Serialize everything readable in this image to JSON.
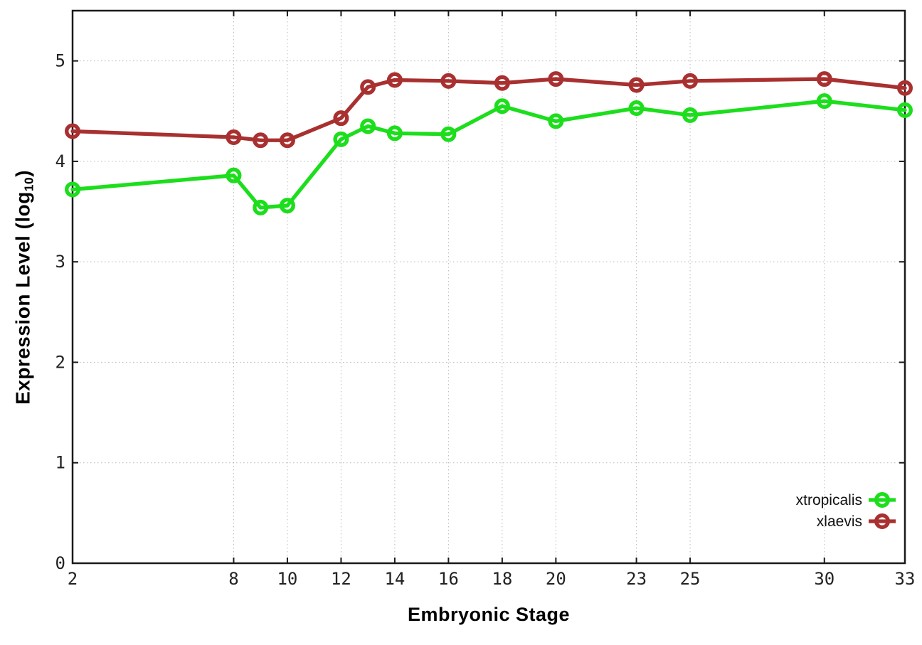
{
  "chart_data": {
    "type": "line",
    "title": "",
    "xlabel": "Embryonic Stage",
    "ylabel": {
      "pre": "Expression Level (log",
      "sub": "10",
      "post": ")"
    },
    "x": [
      2,
      8,
      9,
      10,
      12,
      13,
      14,
      16,
      18,
      20,
      23,
      25,
      30,
      33
    ],
    "series": [
      {
        "name": "xtropicalis",
        "color": "#1cde1c",
        "values": [
          3.72,
          3.86,
          3.54,
          3.56,
          4.22,
          4.35,
          4.28,
          4.27,
          4.55,
          4.4,
          4.53,
          4.46,
          4.6,
          4.51
        ]
      },
      {
        "name": "xlaevis",
        "color": "#a93030",
        "values": [
          4.3,
          4.24,
          4.21,
          4.21,
          4.43,
          4.74,
          4.81,
          4.8,
          4.78,
          4.82,
          4.76,
          4.8,
          4.82,
          4.73
        ]
      }
    ],
    "x_ticks": [
      2,
      8,
      10,
      12,
      14,
      16,
      18,
      20,
      23,
      25,
      30,
      33
    ],
    "y_ticks": [
      0,
      1,
      2,
      3,
      4,
      5
    ],
    "xlim": [
      2,
      33
    ],
    "ylim": [
      0,
      5.5
    ],
    "grid": true,
    "grid_color": "#b8b8b8",
    "axis_color": "#1a1a1a",
    "marker": "open-circle",
    "legend_position": "inside-right-bottom",
    "legend": [
      "xtropicalis",
      "xlaevis"
    ]
  }
}
